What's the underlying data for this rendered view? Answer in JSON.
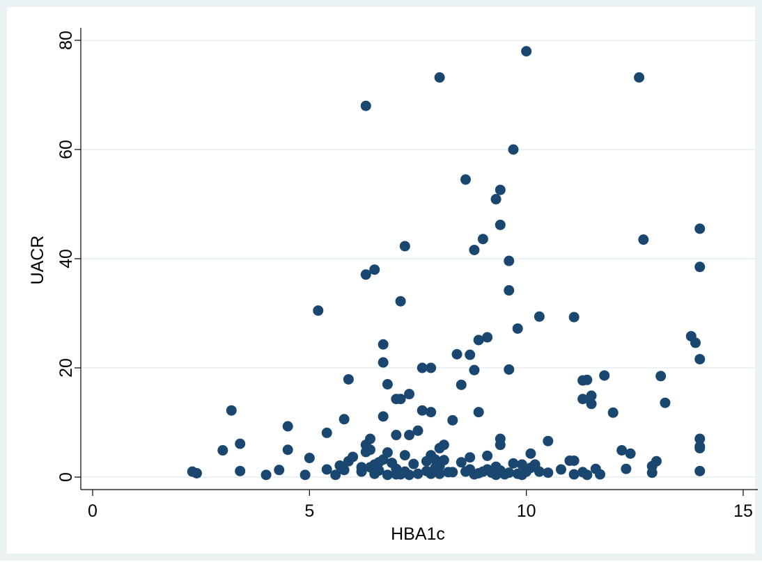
{
  "chart_data": {
    "type": "scatter",
    "title": "",
    "xlabel": "HBA1c",
    "ylabel": "UACR",
    "xlim": [
      0,
      15
    ],
    "ylim": [
      0,
      80
    ],
    "x_ticks": [
      0,
      5,
      10,
      15
    ],
    "y_ticks": [
      0,
      20,
      40,
      60,
      80
    ],
    "x_tick_labels": [
      "0",
      "5",
      "10",
      "15"
    ],
    "y_tick_labels": [
      "0",
      "20",
      "40",
      "60",
      "80"
    ],
    "grid": "horizontal",
    "legend": "none",
    "colors": {
      "outer_background": "#EAF2F3",
      "plot_background": "#FFFFFF",
      "marker": "#1A476F",
      "gridline": "#EAF2F3"
    },
    "series": [
      {
        "points": [
          [
            2.3,
            1.0
          ],
          [
            2.4,
            0.7
          ],
          [
            3.0,
            4.9
          ],
          [
            3.2,
            12.2
          ],
          [
            3.4,
            6.1
          ],
          [
            3.4,
            1.1
          ],
          [
            4.0,
            0.4
          ],
          [
            4.3,
            1.3
          ],
          [
            4.5,
            9.3
          ],
          [
            4.5,
            5.0
          ],
          [
            4.9,
            0.4
          ],
          [
            5.0,
            3.5
          ],
          [
            5.2,
            30.5
          ],
          [
            5.4,
            8.1
          ],
          [
            5.4,
            1.4
          ],
          [
            5.6,
            0.4
          ],
          [
            5.7,
            2.1
          ],
          [
            5.8,
            10.6
          ],
          [
            5.8,
            1.3
          ],
          [
            5.9,
            17.9
          ],
          [
            5.9,
            2.9
          ],
          [
            6.0,
            3.7
          ],
          [
            6.2,
            1.0
          ],
          [
            6.2,
            1.8
          ],
          [
            6.3,
            68.0
          ],
          [
            6.3,
            37.1
          ],
          [
            6.3,
            5.9
          ],
          [
            6.3,
            4.6
          ],
          [
            6.4,
            7.0
          ],
          [
            6.4,
            5.0
          ],
          [
            6.4,
            1.8
          ],
          [
            6.5,
            38.0
          ],
          [
            6.5,
            0.6
          ],
          [
            6.5,
            2.3
          ],
          [
            6.6,
            2.7
          ],
          [
            6.6,
            1.2
          ],
          [
            6.7,
            24.3
          ],
          [
            6.7,
            21.0
          ],
          [
            6.7,
            11.1
          ],
          [
            6.7,
            3.2
          ],
          [
            6.8,
            17.0
          ],
          [
            6.8,
            4.5
          ],
          [
            6.8,
            0.4
          ],
          [
            6.9,
            2.6
          ],
          [
            7.0,
            14.3
          ],
          [
            7.0,
            7.7
          ],
          [
            7.0,
            1.5
          ],
          [
            7.0,
            0.5
          ],
          [
            7.1,
            32.2
          ],
          [
            7.1,
            14.3
          ],
          [
            7.1,
            0.5
          ],
          [
            7.2,
            42.3
          ],
          [
            7.2,
            4.0
          ],
          [
            7.2,
            1.0
          ],
          [
            7.3,
            15.2
          ],
          [
            7.3,
            7.7
          ],
          [
            7.3,
            0.4
          ],
          [
            7.4,
            2.4
          ],
          [
            7.5,
            8.5
          ],
          [
            7.5,
            0.6
          ],
          [
            7.6,
            20.0
          ],
          [
            7.6,
            12.2
          ],
          [
            7.7,
            2.9
          ],
          [
            7.7,
            1.1
          ],
          [
            7.8,
            20.0
          ],
          [
            7.8,
            11.9
          ],
          [
            7.8,
            4.0
          ],
          [
            7.8,
            0.6
          ],
          [
            7.9,
            3.2
          ],
          [
            7.9,
            1.7
          ],
          [
            8.0,
            73.2
          ],
          [
            8.0,
            5.3
          ],
          [
            8.0,
            2.0
          ],
          [
            8.0,
            0.6
          ],
          [
            8.1,
            5.9
          ],
          [
            8.1,
            3.1
          ],
          [
            8.2,
            0.9
          ],
          [
            8.3,
            10.4
          ],
          [
            8.3,
            0.9
          ],
          [
            8.4,
            22.5
          ],
          [
            8.5,
            16.9
          ],
          [
            8.5,
            2.7
          ],
          [
            8.6,
            54.5
          ],
          [
            8.6,
            1.0
          ],
          [
            8.7,
            22.4
          ],
          [
            8.7,
            3.6
          ],
          [
            8.7,
            1.4
          ],
          [
            8.8,
            41.6
          ],
          [
            8.8,
            19.6
          ],
          [
            8.8,
            0.5
          ],
          [
            8.9,
            25.1
          ],
          [
            8.9,
            11.9
          ],
          [
            8.9,
            0.7
          ],
          [
            9.0,
            43.6
          ],
          [
            9.0,
            1.0
          ],
          [
            9.1,
            25.6
          ],
          [
            9.1,
            3.9
          ],
          [
            9.1,
            1.4
          ],
          [
            9.2,
            0.8
          ],
          [
            9.3,
            50.9
          ],
          [
            9.3,
            1.9
          ],
          [
            9.3,
            0.4
          ],
          [
            9.4,
            52.6
          ],
          [
            9.4,
            46.2
          ],
          [
            9.4,
            7.0
          ],
          [
            9.4,
            5.9
          ],
          [
            9.4,
            1.2
          ],
          [
            9.5,
            0.5
          ],
          [
            9.6,
            39.6
          ],
          [
            9.6,
            34.2
          ],
          [
            9.6,
            19.7
          ],
          [
            9.6,
            0.8
          ],
          [
            9.7,
            60.0
          ],
          [
            9.7,
            2.5
          ],
          [
            9.8,
            27.2
          ],
          [
            9.8,
            0.6
          ],
          [
            9.9,
            2.3
          ],
          [
            9.9,
            0.4
          ],
          [
            10.0,
            78.0
          ],
          [
            10.0,
            1.0
          ],
          [
            10.1,
            4.3
          ],
          [
            10.1,
            1.7
          ],
          [
            10.2,
            2.3
          ],
          [
            10.3,
            29.4
          ],
          [
            10.3,
            1.0
          ],
          [
            10.5,
            6.6
          ],
          [
            10.5,
            0.8
          ],
          [
            10.8,
            1.4
          ],
          [
            11.0,
            3.0
          ],
          [
            11.1,
            29.3
          ],
          [
            11.1,
            3.0
          ],
          [
            11.1,
            0.5
          ],
          [
            11.3,
            17.7
          ],
          [
            11.3,
            14.3
          ],
          [
            11.3,
            0.9
          ],
          [
            11.4,
            17.8
          ],
          [
            11.4,
            0.4
          ],
          [
            11.5,
            14.9
          ],
          [
            11.5,
            13.4
          ],
          [
            11.6,
            1.5
          ],
          [
            11.7,
            0.5
          ],
          [
            11.8,
            18.6
          ],
          [
            12.0,
            11.8
          ],
          [
            12.2,
            4.9
          ],
          [
            12.3,
            1.5
          ],
          [
            12.4,
            4.3
          ],
          [
            12.6,
            73.2
          ],
          [
            12.7,
            43.5
          ],
          [
            12.9,
            2.0
          ],
          [
            12.9,
            0.8
          ],
          [
            13.0,
            2.9
          ],
          [
            13.1,
            18.5
          ],
          [
            13.2,
            13.6
          ],
          [
            13.8,
            25.8
          ],
          [
            13.9,
            24.6
          ],
          [
            14.0,
            45.5
          ],
          [
            14.0,
            38.5
          ],
          [
            14.0,
            21.6
          ],
          [
            14.0,
            7.0
          ],
          [
            14.0,
            5.6
          ],
          [
            14.0,
            5.3
          ],
          [
            14.0,
            1.1
          ]
        ]
      }
    ]
  }
}
